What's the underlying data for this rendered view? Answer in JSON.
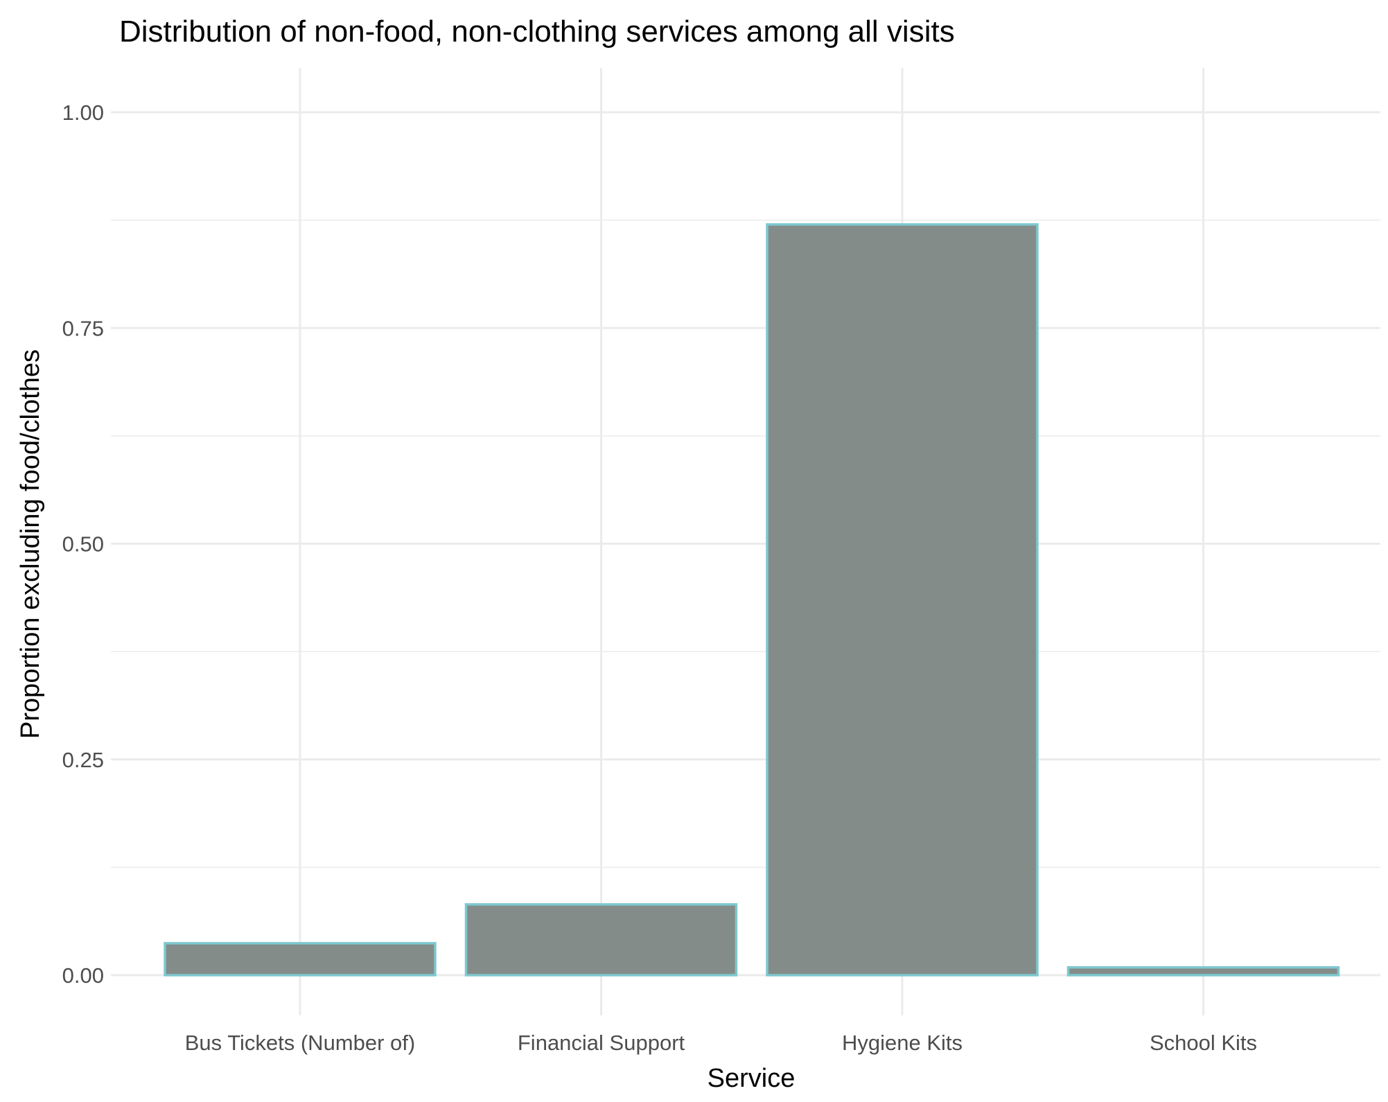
{
  "chart_data": {
    "type": "bar",
    "title": "Distribution of non-food, non-clothing services among all visits",
    "xlabel": "Service",
    "ylabel": "Proportion excluding food/clothes",
    "categories": [
      "Bus Tickets (Number of)",
      "Financial Support",
      "Hygiene Kits",
      "School Kits"
    ],
    "values": [
      0.037,
      0.082,
      0.87,
      0.009
    ],
    "ylim": [
      0,
      1.0
    ],
    "yticks": [
      "0.00",
      "0.25",
      "0.50",
      "0.75",
      "1.00"
    ],
    "grid": true,
    "legend": "none",
    "colors": {
      "bar_fill": "#848c8a",
      "bar_outline": "#7ec8cf"
    }
  }
}
